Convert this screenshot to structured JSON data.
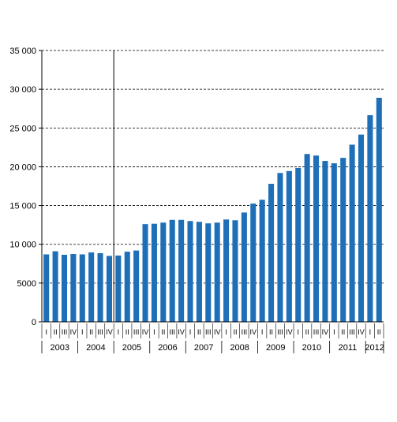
{
  "chart_data": {
    "type": "bar",
    "title": "",
    "xlabel": "",
    "ylabel": "",
    "ylim": [
      0,
      35000
    ],
    "y_ticks": [
      0,
      5000,
      10000,
      15000,
      20000,
      25000,
      30000,
      35000
    ],
    "y_tick_labels": [
      "0",
      "5000",
      "10 000",
      "15 000",
      "20 000",
      "25 000",
      "30 000",
      "35 000"
    ],
    "grid": "horizontal dashed",
    "bar_color": "#1F6FB8",
    "period_divider_after": "2004 IV",
    "years": [
      "2003",
      "2004",
      "2005",
      "2006",
      "2007",
      "2008",
      "2009",
      "2010",
      "2011",
      "2012"
    ],
    "quarter_labels": [
      "I",
      "II",
      "III",
      "IV",
      "I",
      "II",
      "III",
      "IV",
      "I",
      "II",
      "III",
      "IV",
      "I",
      "II",
      "III",
      "IV",
      "I",
      "II",
      "III",
      "IV",
      "I",
      "II",
      "III",
      "IV",
      "I",
      "II",
      "III",
      "IV",
      "I",
      "II",
      "III",
      "IV",
      "I",
      "II",
      "III",
      "IV",
      "I",
      "II"
    ],
    "categories": [
      "2003 I",
      "2003 II",
      "2003 III",
      "2003 IV",
      "2004 I",
      "2004 II",
      "2004 III",
      "2004 IV",
      "2005 I",
      "2005 II",
      "2005 III",
      "2005 IV",
      "2006 I",
      "2006 II",
      "2006 III",
      "2006 IV",
      "2007 I",
      "2007 II",
      "2007 III",
      "2007 IV",
      "2008 I",
      "2008 II",
      "2008 III",
      "2008 IV",
      "2009 I",
      "2009 II",
      "2009 III",
      "2009 IV",
      "2010 I",
      "2010 II",
      "2010 III",
      "2010 IV",
      "2011 I",
      "2011 II",
      "2011 III",
      "2011 IV",
      "2012 I",
      "2012 II"
    ],
    "values": [
      8700,
      9100,
      8650,
      8750,
      8700,
      8950,
      8850,
      8500,
      8550,
      9050,
      9200,
      12600,
      12650,
      12800,
      13150,
      13150,
      13000,
      12900,
      12700,
      12800,
      13200,
      13100,
      14100,
      15250,
      15750,
      17800,
      19200,
      19450,
      19850,
      21650,
      21450,
      20750,
      20450,
      21150,
      22850,
      24150,
      26650,
      28900
    ]
  }
}
